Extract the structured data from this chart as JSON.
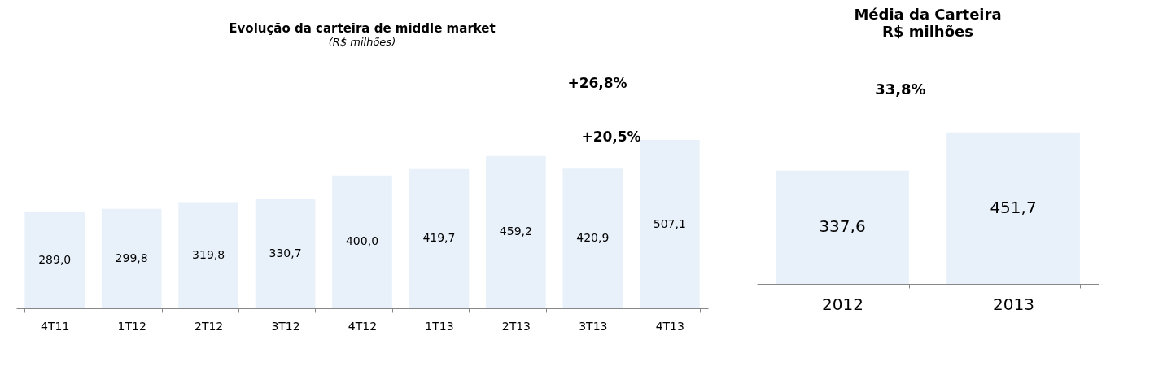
{
  "chart_data": [
    {
      "type": "bar",
      "title": "Evolução da carteira de middle market",
      "subtitle": "(R$ milhões)",
      "categories": [
        "4T11",
        "1T12",
        "2T12",
        "3T12",
        "4T12",
        "1T13",
        "2T13",
        "3T13",
        "4T13"
      ],
      "values": [
        289.0,
        299.8,
        319.8,
        330.7,
        400.0,
        419.7,
        459.2,
        420.9,
        507.1
      ],
      "color": "#e8f1fa",
      "value_labels": [
        "289,0",
        "299,8",
        "319,8",
        "330,7",
        "400,0",
        "419,7",
        "459,2",
        "420,9",
        "507,1"
      ],
      "grid": false,
      "annotations": [
        "+26,8%",
        "+20,5%"
      ]
    },
    {
      "type": "bar",
      "title": "Média da Carteira",
      "subtitle": "R$ milhões",
      "categories": [
        "2012",
        "2013"
      ],
      "values": [
        337.6,
        451.7
      ],
      "color": "#e8f1fa",
      "value_labels": [
        "337,6",
        "451,7"
      ],
      "grid": false,
      "annotations": [
        "33,8%"
      ]
    }
  ]
}
